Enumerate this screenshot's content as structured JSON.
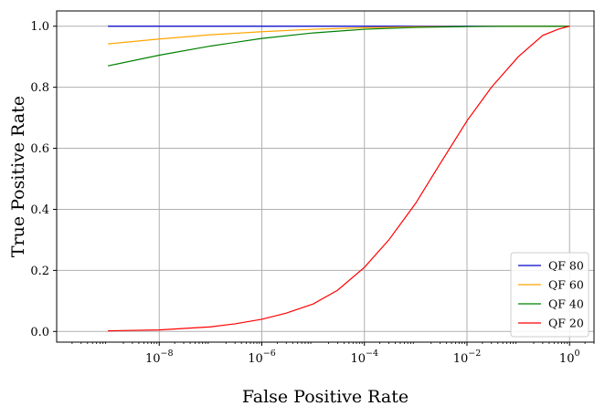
{
  "chart_data": {
    "type": "line",
    "xlabel": "False Positive Rate",
    "ylabel": "True Positive Rate",
    "xscale": "log",
    "xlim": [
      1e-10,
      3
    ],
    "ylim": [
      -0.035,
      1.05
    ],
    "grid": true,
    "legend_position": "lower-right",
    "x_ticks": [
      {
        "value": 1e-08,
        "base": "10",
        "exp": "−8"
      },
      {
        "value": 1e-06,
        "base": "10",
        "exp": "−6"
      },
      {
        "value": 0.0001,
        "base": "10",
        "exp": "−4"
      },
      {
        "value": 0.01,
        "base": "10",
        "exp": "−2"
      },
      {
        "value": 1,
        "base": "10",
        "exp": "0"
      }
    ],
    "y_ticks": [
      {
        "value": 0.0,
        "label": "0.0"
      },
      {
        "value": 0.2,
        "label": "0.2"
      },
      {
        "value": 0.4,
        "label": "0.4"
      },
      {
        "value": 0.6,
        "label": "0.6"
      },
      {
        "value": 0.8,
        "label": "0.8"
      },
      {
        "value": 1.0,
        "label": "1.0"
      }
    ],
    "series": [
      {
        "name": "QF 80",
        "color": "#0000cc",
        "points": [
          [
            1e-09,
            1.0
          ],
          [
            1.0,
            1.0
          ]
        ]
      },
      {
        "name": "QF 60",
        "color": "#ffa500",
        "points": [
          [
            1e-09,
            0.942
          ],
          [
            1e-08,
            0.958
          ],
          [
            1e-07,
            0.972
          ],
          [
            1e-06,
            0.982
          ],
          [
            1e-05,
            0.99
          ],
          [
            0.0001,
            0.995
          ],
          [
            0.001,
            0.998
          ],
          [
            0.01,
            0.999
          ],
          [
            0.1,
            1.0
          ],
          [
            1.0,
            1.0
          ]
        ]
      },
      {
        "name": "QF 40",
        "color": "#008000",
        "points": [
          [
            1e-09,
            0.87
          ],
          [
            1e-08,
            0.905
          ],
          [
            1e-07,
            0.935
          ],
          [
            1e-06,
            0.96
          ],
          [
            1e-05,
            0.978
          ],
          [
            0.0001,
            0.99
          ],
          [
            0.001,
            0.996
          ],
          [
            0.01,
            0.999
          ],
          [
            0.1,
            1.0
          ],
          [
            1.0,
            1.0
          ]
        ]
      },
      {
        "name": "QF 20",
        "color": "#ff0000",
        "points": [
          [
            1e-09,
            0.002
          ],
          [
            1e-08,
            0.005
          ],
          [
            1e-07,
            0.015
          ],
          [
            3e-07,
            0.025
          ],
          [
            1e-06,
            0.04
          ],
          [
            3e-06,
            0.06
          ],
          [
            1e-05,
            0.09
          ],
          [
            3e-05,
            0.135
          ],
          [
            0.0001,
            0.21
          ],
          [
            0.0003,
            0.3
          ],
          [
            0.001,
            0.42
          ],
          [
            0.003,
            0.55
          ],
          [
            0.01,
            0.69
          ],
          [
            0.03,
            0.8
          ],
          [
            0.1,
            0.9
          ],
          [
            0.3,
            0.97
          ],
          [
            0.6,
            0.99
          ],
          [
            1.0,
            1.0
          ]
        ]
      }
    ]
  }
}
